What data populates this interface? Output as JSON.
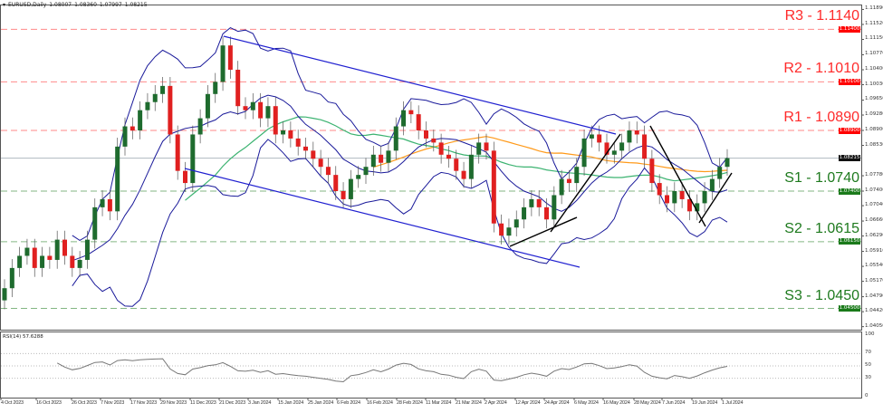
{
  "header": {
    "symbol": "EURUSD,Daily",
    "open": "1.08007",
    "high": "1.08360",
    "low": "1.07997",
    "close": "1.08215"
  },
  "levels": [
    {
      "label": "R3 - 1.1140",
      "price": 1.114,
      "tag": "1.11400",
      "color": "#ff2a2a"
    },
    {
      "label": "R2 - 1.1010",
      "price": 1.101,
      "tag": "1.10100",
      "color": "#ff2a2a"
    },
    {
      "label": "R1 - 1.0890",
      "price": 1.089,
      "tag": "1.08900",
      "color": "#ff2a2a"
    },
    {
      "label": "S1 - 1.0740",
      "price": 1.074,
      "tag": "1.07400",
      "color": "#1e7a1e"
    },
    {
      "label": "S2 - 1.0615",
      "price": 1.0615,
      "tag": "1.06150",
      "color": "#1e7a1e"
    },
    {
      "label": "S3 - 1.0450",
      "price": 1.045,
      "tag": "1.04500",
      "color": "#1e7a1e"
    }
  ],
  "current_price": {
    "value": 1.08215,
    "tag": "1.08215"
  },
  "price_axis": [
    "1.11890",
    "1.11520",
    "1.11150",
    "1.10770",
    "1.10400",
    "1.10030",
    "1.09650",
    "1.09280",
    "1.08900",
    "1.08530",
    "1.07780",
    "1.07400",
    "1.07040",
    "1.06660",
    "1.06290",
    "1.05910",
    "1.05540",
    "1.05170",
    "1.04790",
    "1.04420",
    "1.04050"
  ],
  "rsi": {
    "label": "RSI(14) 57.6288",
    "ticks": [
      "100",
      "70",
      "50",
      "30",
      "0"
    ]
  },
  "date_axis": [
    "4 Oct 2023",
    "16 Oct 2023",
    "26 Oct 2023",
    "7 Nov 2023",
    "17 Nov 2023",
    "29 Nov 2023",
    "11 Dec 2023",
    "21 Dec 2023",
    "3 Jan 2024",
    "15 Jan 2024",
    "25 Jan 2024",
    "6 Feb 2024",
    "16 Feb 2024",
    "28 Feb 2024",
    "11 Mar 2024",
    "21 Mar 2024",
    "2 Apr 2024",
    "12 Apr 2024",
    "24 Apr 2024",
    "6 May 2024",
    "16 May 2024",
    "28 May 2024",
    "7 Jun 2024",
    "19 Jun 2024",
    "1 Jul 2024"
  ],
  "colors": {
    "bull": "#1e6b2e",
    "bear": "#e02020",
    "bands": "#1a1a9a",
    "channel": "#2020d0",
    "ma_fast": "#3cb371",
    "ma_slow": "#ff9a1a",
    "trendline": "#000000",
    "rsi": "#777777"
  },
  "chart_data": {
    "type": "candlestick",
    "title": "EURUSD,Daily",
    "ylim": [
      1.0405,
      1.1189
    ],
    "grid": false,
    "closes": [
      1.05,
      1.055,
      1.058,
      1.06,
      1.055,
      1.058,
      1.057,
      1.062,
      1.058,
      1.055,
      1.057,
      1.062,
      1.07,
      1.072,
      1.069,
      1.085,
      1.09,
      1.089,
      1.094,
      1.096,
      1.098,
      1.1,
      1.088,
      1.079,
      1.076,
      1.088,
      1.092,
      1.098,
      1.101,
      1.11,
      1.104,
      1.095,
      1.094,
      1.096,
      1.092,
      1.095,
      1.088,
      1.089,
      1.087,
      1.085,
      1.084,
      1.082,
      1.08,
      1.078,
      1.074,
      1.072,
      1.077,
      1.078,
      1.08,
      1.083,
      1.081,
      1.084,
      1.09,
      1.094,
      1.093,
      1.089,
      1.087,
      1.086,
      1.083,
      1.082,
      1.079,
      1.077,
      1.083,
      1.086,
      1.084,
      1.066,
      1.063,
      1.065,
      1.067,
      1.07,
      1.072,
      1.07,
      1.067,
      1.073,
      1.077,
      1.076,
      1.08,
      1.087,
      1.088,
      1.086,
      1.083,
      1.084,
      1.086,
      1.089,
      1.088,
      1.082,
      1.076,
      1.073,
      1.071,
      1.074,
      1.072,
      1.069,
      1.071,
      1.074,
      1.077,
      1.08,
      1.08215
    ],
    "first_open": 1.047
  }
}
